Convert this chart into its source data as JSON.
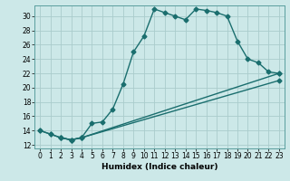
{
  "xlabel": "Humidex (Indice chaleur)",
  "background_color": "#cce8e8",
  "grid_color": "#aacccc",
  "line_color": "#1a6e6e",
  "xlim": [
    -0.5,
    23.5
  ],
  "ylim": [
    11.5,
    31.5
  ],
  "xticks": [
    0,
    1,
    2,
    3,
    4,
    5,
    6,
    7,
    8,
    9,
    10,
    11,
    12,
    13,
    14,
    15,
    16,
    17,
    18,
    19,
    20,
    21,
    22,
    23
  ],
  "yticks": [
    12,
    14,
    16,
    18,
    20,
    22,
    24,
    26,
    28,
    30
  ],
  "line1_x": [
    0,
    1,
    2,
    3,
    4,
    5,
    6,
    7,
    8,
    9,
    10,
    11,
    12,
    13,
    14,
    15,
    16,
    17,
    18,
    19,
    20,
    21,
    22,
    23
  ],
  "line1_y": [
    14,
    13.5,
    13,
    12.7,
    13.0,
    15.0,
    15.2,
    17.0,
    20.5,
    25.0,
    27.2,
    31.0,
    30.5,
    30.0,
    29.5,
    31.0,
    30.8,
    30.5,
    30.0,
    26.5,
    24.0,
    23.5,
    22.2,
    22.0
  ],
  "line2_x": [
    0,
    1,
    2,
    3,
    4,
    23
  ],
  "line2_y": [
    14,
    13.5,
    13,
    12.7,
    13.0,
    22.0
  ],
  "line3_x": [
    2,
    3,
    4,
    23
  ],
  "line3_y": [
    13,
    12.7,
    13.0,
    21.0
  ],
  "marker": "D",
  "markersize": 2.5,
  "linewidth": 1.0,
  "xlabel_fontsize": 6.5,
  "tick_fontsize": 5.5
}
